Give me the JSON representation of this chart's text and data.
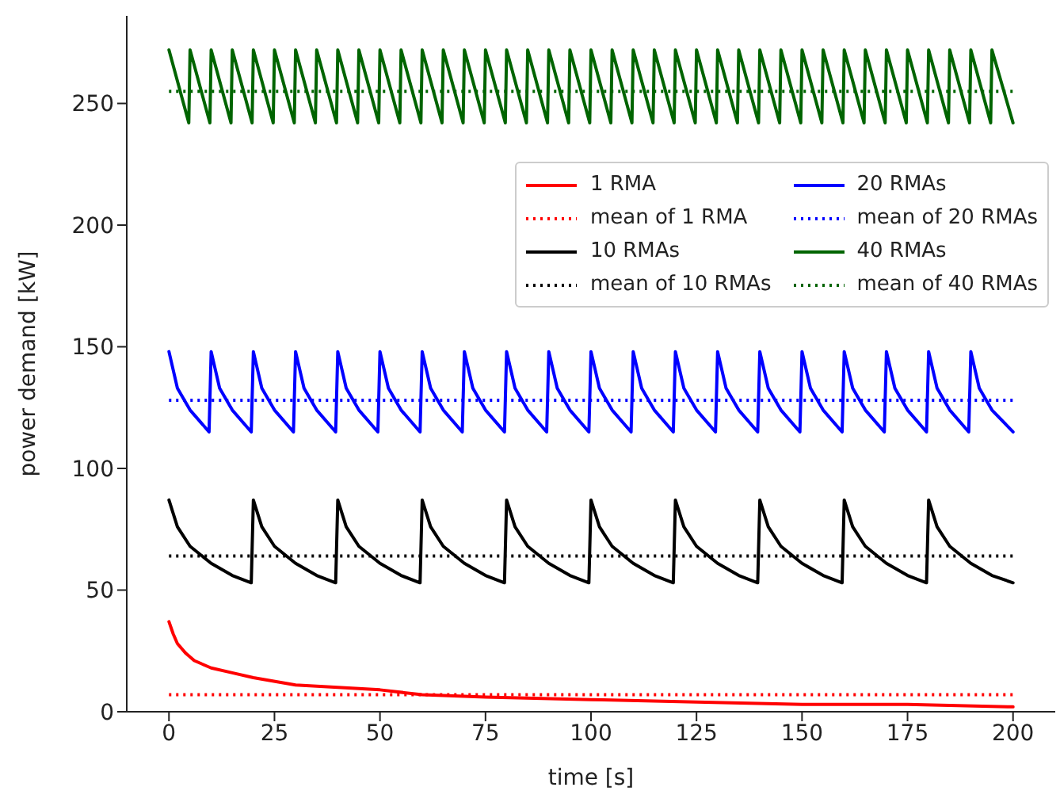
{
  "chart_data": {
    "type": "line",
    "xlabel": "time [s]",
    "ylabel": "power demand [kW]",
    "xlim": [
      -10,
      210
    ],
    "xticks": [
      0,
      25,
      50,
      75,
      100,
      125,
      150,
      175,
      200
    ],
    "ylim": [
      0,
      286
    ],
    "yticks": [
      0,
      50,
      100,
      150,
      200,
      250
    ],
    "grid": false,
    "legend": "right",
    "marker": "none",
    "series": [
      {
        "name": "1 RMA",
        "color": "#ff0000",
        "line_style": "solid",
        "x": [
          0,
          1,
          2,
          4,
          6,
          10,
          15,
          20,
          30,
          40,
          50,
          60,
          75,
          100,
          125,
          150,
          175,
          200
        ],
        "values": [
          37,
          32,
          28,
          24,
          21,
          18,
          16,
          14,
          11,
          10,
          9,
          7,
          6,
          5,
          4,
          3,
          3,
          2
        ]
      },
      {
        "name": "mean of 1 RMA",
        "color": "#ff0000",
        "line_style": "dotted",
        "x": [
          0,
          200
        ],
        "values": [
          7,
          7
        ]
      },
      {
        "name": "10 RMAs",
        "color": "#000000",
        "line_style": "solid",
        "x": [
          0,
          2,
          5,
          10,
          15,
          19.5,
          20,
          22,
          25,
          30,
          35,
          39.5,
          40,
          42,
          45,
          50,
          55,
          59.5,
          60,
          62,
          65,
          70,
          75,
          79.5,
          80,
          82,
          85,
          90,
          95,
          99.5,
          100,
          102,
          105,
          110,
          115,
          119.5,
          120,
          122,
          125,
          130,
          135,
          139.5,
          140,
          142,
          145,
          150,
          155,
          159.5,
          160,
          162,
          165,
          170,
          175,
          179.5,
          180,
          182,
          185,
          190,
          195,
          200
        ],
        "values": [
          87,
          76,
          68,
          61,
          56,
          53,
          87,
          76,
          68,
          61,
          56,
          53,
          87,
          76,
          68,
          61,
          56,
          53,
          87,
          76,
          68,
          61,
          56,
          53,
          87,
          76,
          68,
          61,
          56,
          53,
          87,
          76,
          68,
          61,
          56,
          53,
          87,
          76,
          68,
          61,
          56,
          53,
          87,
          76,
          68,
          61,
          56,
          53,
          87,
          76,
          68,
          61,
          56,
          53,
          87,
          76,
          68,
          61,
          56,
          53
        ]
      },
      {
        "name": "mean of 10 RMAs",
        "color": "#000000",
        "line_style": "dotted",
        "x": [
          0,
          200
        ],
        "values": [
          64,
          64
        ]
      },
      {
        "name": "20 RMAs",
        "color": "#0000ff",
        "line_style": "solid",
        "x": [
          0,
          2,
          5,
          9.5,
          10,
          12,
          15,
          19.5,
          20,
          22,
          25,
          29.5,
          30,
          32,
          35,
          39.5,
          40,
          42,
          45,
          49.5,
          50,
          52,
          55,
          59.5,
          60,
          62,
          65,
          69.5,
          70,
          72,
          75,
          79.5,
          80,
          82,
          85,
          89.5,
          90,
          92,
          95,
          99.5,
          100,
          102,
          105,
          109.5,
          110,
          112,
          115,
          119.5,
          120,
          122,
          125,
          129.5,
          130,
          132,
          135,
          139.5,
          140,
          142,
          145,
          149.5,
          150,
          152,
          155,
          159.5,
          160,
          162,
          165,
          169.5,
          170,
          172,
          175,
          179.5,
          180,
          182,
          185,
          189.5,
          190,
          192,
          195,
          200
        ],
        "values": [
          148,
          133,
          124,
          115,
          148,
          133,
          124,
          115,
          148,
          133,
          124,
          115,
          148,
          133,
          124,
          115,
          148,
          133,
          124,
          115,
          148,
          133,
          124,
          115,
          148,
          133,
          124,
          115,
          148,
          133,
          124,
          115,
          148,
          133,
          124,
          115,
          148,
          133,
          124,
          115,
          148,
          133,
          124,
          115,
          148,
          133,
          124,
          115,
          148,
          133,
          124,
          115,
          148,
          133,
          124,
          115,
          148,
          133,
          124,
          115,
          148,
          133,
          124,
          115,
          148,
          133,
          124,
          115,
          148,
          133,
          124,
          115,
          148,
          133,
          124,
          115,
          148,
          133,
          124,
          115
        ]
      },
      {
        "name": "mean of 20 RMAs",
        "color": "#0000ff",
        "line_style": "dotted",
        "x": [
          0,
          200
        ],
        "values": [
          128,
          128
        ]
      },
      {
        "name": "40 RMAs",
        "color": "#006400",
        "line_style": "solid",
        "x": [
          0,
          4.7,
          5,
          9.7,
          10,
          14.7,
          15,
          19.7,
          20,
          24.7,
          25,
          29.7,
          30,
          34.7,
          35,
          39.7,
          40,
          44.7,
          45,
          49.7,
          50,
          54.7,
          55,
          59.7,
          60,
          64.7,
          65,
          69.7,
          70,
          74.7,
          75,
          79.7,
          80,
          84.7,
          85,
          89.7,
          90,
          94.7,
          95,
          99.7,
          100,
          104.7,
          105,
          109.7,
          110,
          114.7,
          115,
          119.7,
          120,
          124.7,
          125,
          129.7,
          130,
          134.7,
          135,
          139.7,
          140,
          144.7,
          145,
          149.7,
          150,
          154.7,
          155,
          159.7,
          160,
          164.7,
          165,
          169.7,
          170,
          174.7,
          175,
          179.7,
          180,
          184.7,
          185,
          189.7,
          190,
          194.7,
          195,
          200
        ],
        "values": [
          272,
          242,
          272,
          242,
          272,
          242,
          272,
          242,
          272,
          242,
          272,
          242,
          272,
          242,
          272,
          242,
          272,
          242,
          272,
          242,
          272,
          242,
          272,
          242,
          272,
          242,
          272,
          242,
          272,
          242,
          272,
          242,
          272,
          242,
          272,
          242,
          272,
          242,
          272,
          242,
          272,
          242,
          272,
          242,
          272,
          242,
          272,
          242,
          272,
          242,
          272,
          242,
          272,
          242,
          272,
          242,
          272,
          242,
          272,
          242,
          272,
          242,
          272,
          242,
          272,
          242,
          272,
          242,
          272,
          242,
          272,
          242,
          272,
          242,
          272,
          242,
          272,
          242,
          272,
          242
        ]
      },
      {
        "name": "mean of 40 RMAs",
        "color": "#006400",
        "line_style": "dotted",
        "x": [
          0,
          200
        ],
        "values": [
          255,
          255
        ]
      }
    ]
  }
}
